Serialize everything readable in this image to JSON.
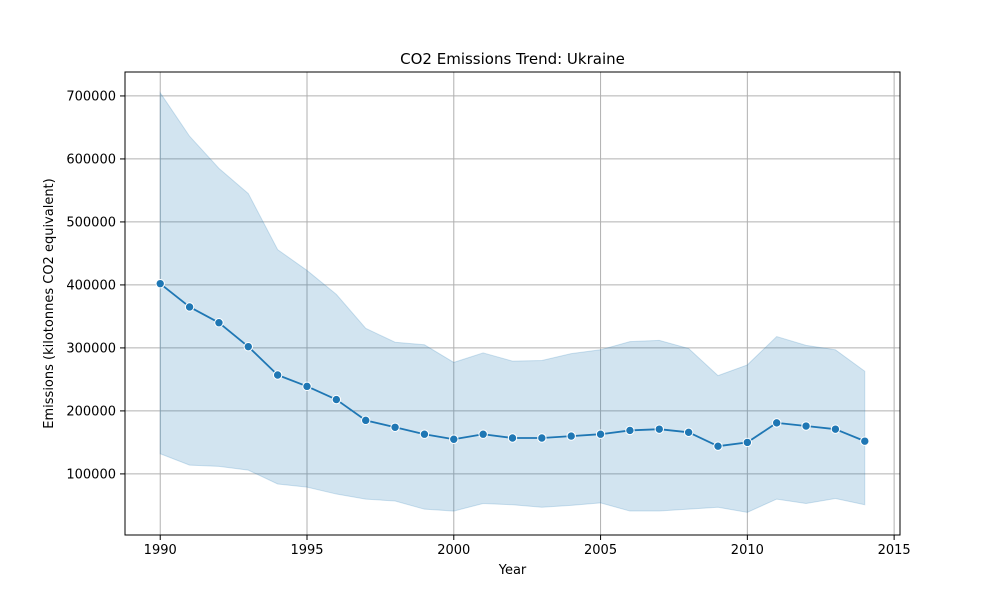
{
  "chart_data": {
    "type": "line",
    "title": "CO2 Emissions Trend: Ukraine",
    "xlabel": "Year",
    "ylabel": "Emissions (kilotonnes CO2 equivalent)",
    "xlim": [
      1988.8,
      2015.2
    ],
    "ylim": [
      3000,
      738000
    ],
    "xticks": [
      1990,
      1995,
      2000,
      2005,
      2010,
      2015
    ],
    "yticks": [
      100000,
      200000,
      300000,
      400000,
      500000,
      600000,
      700000
    ],
    "grid": true,
    "x": [
      1990,
      1991,
      1992,
      1993,
      1994,
      1995,
      1996,
      1997,
      1998,
      1999,
      2000,
      2001,
      2002,
      2003,
      2004,
      2005,
      2006,
      2007,
      2008,
      2009,
      2010,
      2011,
      2012,
      2013,
      2014
    ],
    "series": [
      {
        "values": [
          402000,
          365000,
          340000,
          302000,
          257000,
          239000,
          218000,
          185000,
          174000,
          163000,
          155000,
          163000,
          157000,
          157000,
          160000,
          163000,
          169000,
          171000,
          166000,
          144000,
          150000,
          181000,
          176000,
          171000,
          152000
        ],
        "band_upper": [
          705000,
          636000,
          585000,
          545000,
          456000,
          423000,
          385000,
          331000,
          309000,
          305000,
          277000,
          292000,
          279000,
          280000,
          291000,
          297000,
          310000,
          312000,
          299000,
          256000,
          273000,
          318000,
          304000,
          297000,
          263000
        ],
        "band_lower": [
          132000,
          114000,
          112000,
          106000,
          84000,
          79000,
          68000,
          60000,
          57000,
          44000,
          41000,
          53000,
          51000,
          47000,
          50000,
          54000,
          41000,
          41000,
          44000,
          47000,
          39000,
          60000,
          53000,
          61000,
          51000
        ]
      }
    ],
    "colors": {
      "line": "#1f77b4",
      "band": "#1f77b4",
      "grid": "#b0b0b0"
    }
  }
}
